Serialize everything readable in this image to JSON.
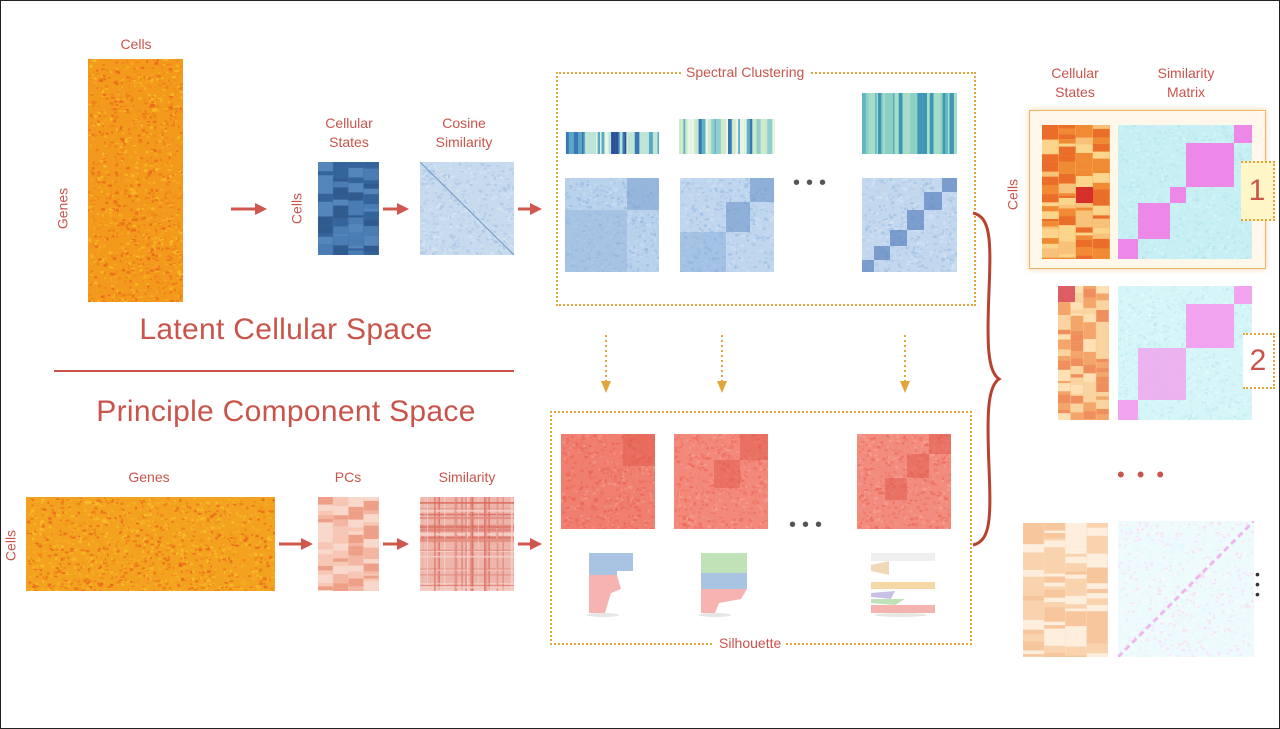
{
  "top": {
    "cells_label": "Cells",
    "genes_label": "Genes",
    "cellular_states_label": "Cellular\nStates",
    "cells_side_label": "Cells",
    "cosine_similarity_label": "Cosine\nSimilarity",
    "spectral_clustering_label": "Spectral Clustering",
    "section_title": "Latent Cellular Space"
  },
  "bottom": {
    "section_title": "Principle Component Space",
    "genes_label": "Genes",
    "cells_side_label": "Cells",
    "pcs_label": "PCs",
    "similarity_label": "Similarity",
    "silhouette_label": "Silhouette"
  },
  "right": {
    "cellular_states_label": "Cellular\nStates",
    "similarity_matrix_label": "Similarity\nMatrix",
    "cells_side_label": "Cells",
    "rank_1": "1",
    "rank_2": "2"
  },
  "colors": {
    "accent_text": "#c9544b",
    "dotted_box": "#e2a53a",
    "brace": "#b7422f"
  }
}
